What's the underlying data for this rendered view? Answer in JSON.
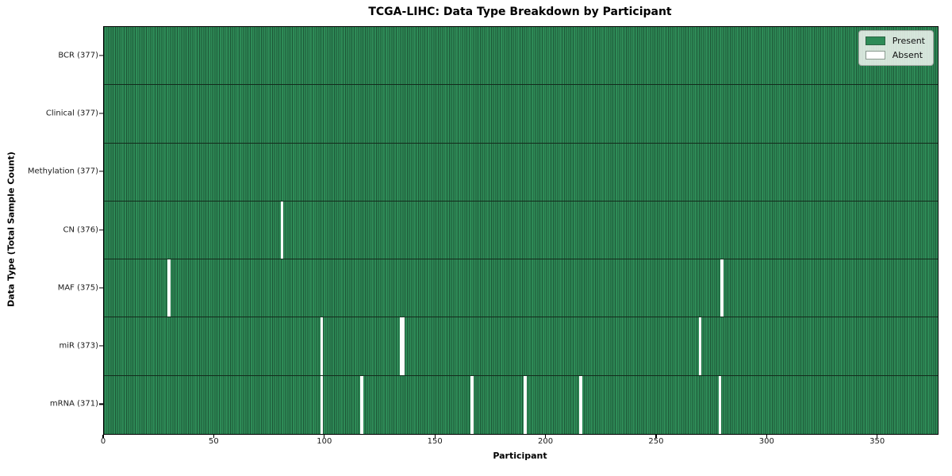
{
  "chart_data": {
    "type": "heatmap",
    "title": "TCGA-LIHC: Data Type Breakdown by Participant",
    "xlabel": "Participant",
    "ylabel": "Data Type (Total Sample Count)",
    "x_ticks": [
      0,
      50,
      100,
      150,
      200,
      250,
      300,
      350
    ],
    "xlim": [
      0,
      377
    ],
    "n_participants": 377,
    "grid": false,
    "legend_position": "upper-right",
    "colors": {
      "present": "#2e8b57",
      "absent": "#fdfdfd",
      "cell_edge": "#1d5737",
      "row_divider": "#132b1c",
      "axes_frame": "#000000",
      "legend_bg": "#f7f9f6",
      "legend_border": "#a3a8a3"
    },
    "legend": [
      {
        "label": "Present",
        "color": "#2e8b57"
      },
      {
        "label": "Absent",
        "color": "#ffffff"
      }
    ],
    "rows": [
      {
        "label": "BCR (377)",
        "data_type": "BCR",
        "present_count": 377,
        "absent_participants": []
      },
      {
        "label": "Clinical (377)",
        "data_type": "Clinical",
        "present_count": 377,
        "absent_participants": []
      },
      {
        "label": "Methylation (377)",
        "data_type": "Methylation",
        "present_count": 377,
        "absent_participants": []
      },
      {
        "label": "CN (376)",
        "data_type": "CN",
        "present_count": 376,
        "absent_participants": [
          80
        ]
      },
      {
        "label": "MAF (375)",
        "data_type": "MAF",
        "present_count": 375,
        "absent_participants": [
          29,
          279
        ]
      },
      {
        "label": "miR (373)",
        "data_type": "miR",
        "present_count": 373,
        "absent_participants": [
          98,
          134,
          135,
          269
        ]
      },
      {
        "label": "mRNA (371)",
        "data_type": "mRNA",
        "present_count": 371,
        "absent_participants": [
          98,
          116,
          166,
          190,
          215,
          278
        ]
      }
    ]
  }
}
